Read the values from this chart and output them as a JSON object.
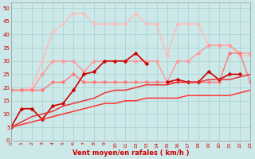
{
  "xlabel": "Vent moyen/en rafales ( km/h )",
  "xlim": [
    0,
    23
  ],
  "ylim": [
    0,
    52
  ],
  "yticks": [
    0,
    5,
    10,
    15,
    20,
    25,
    30,
    35,
    40,
    45,
    50
  ],
  "xticks": [
    0,
    1,
    2,
    3,
    4,
    5,
    6,
    7,
    8,
    9,
    10,
    11,
    12,
    13,
    14,
    15,
    16,
    17,
    18,
    19,
    20,
    21,
    22,
    23
  ],
  "bg_color": "#cce8e8",
  "grid_color": "#aad4d4",
  "series": [
    {
      "x": [
        0,
        1,
        2,
        3,
        4,
        5,
        6,
        7,
        8,
        9,
        10,
        11,
        12,
        13,
        14,
        15,
        16,
        17,
        18,
        19,
        20,
        21,
        22,
        23
      ],
      "y": [
        19,
        19,
        20,
        30,
        41,
        44,
        48,
        48,
        44,
        44,
        44,
        44,
        48,
        44,
        44,
        32,
        44,
        44,
        44,
        36,
        36,
        36,
        32,
        32
      ],
      "color": "#ffbbbb",
      "lw": 1.0,
      "marker": "D",
      "ms": 2.5
    },
    {
      "x": [
        0,
        1,
        2,
        3,
        4,
        5,
        6,
        7,
        8,
        9,
        10,
        11,
        12,
        13,
        14,
        15,
        16,
        17,
        18,
        19,
        20,
        21,
        22,
        23
      ],
      "y": [
        19,
        19,
        19,
        25,
        30,
        30,
        30,
        26,
        30,
        30,
        30,
        30,
        30,
        30,
        30,
        22,
        30,
        30,
        33,
        36,
        36,
        36,
        33,
        33
      ],
      "color": "#ff9999",
      "lw": 1.0,
      "marker": "D",
      "ms": 2.5
    },
    {
      "x": [
        0,
        1,
        2,
        3,
        4,
        5,
        6,
        7,
        8,
        9,
        10,
        11,
        12,
        13,
        14,
        15,
        16,
        17,
        18,
        19,
        20,
        21,
        22,
        23
      ],
      "y": [
        19,
        19,
        19,
        19,
        22,
        22,
        25,
        22,
        22,
        22,
        22,
        22,
        22,
        22,
        22,
        22,
        22,
        22,
        22,
        22,
        22,
        33,
        33,
        22
      ],
      "color": "#ff7777",
      "lw": 1.0,
      "marker": "D",
      "ms": 2.5
    },
    {
      "x": [
        0,
        1,
        2,
        3,
        4,
        5,
        6,
        7,
        8,
        9,
        10,
        11,
        12,
        13,
        14,
        15,
        16,
        17,
        18,
        19,
        20,
        21,
        22,
        23
      ],
      "y": [
        5,
        12,
        12,
        8,
        13,
        14,
        19,
        25,
        26,
        30,
        30,
        30,
        33,
        29,
        null,
        22,
        23,
        22,
        22,
        26,
        23,
        25,
        25,
        null
      ],
      "color": "#cc0000",
      "lw": 1.2,
      "marker": "D",
      "ms": 2.5
    },
    {
      "x": [
        0,
        1,
        2,
        3,
        4,
        5,
        6,
        7,
        8,
        9,
        10,
        11,
        12,
        13,
        14,
        15,
        16,
        17,
        18,
        19,
        20,
        21,
        22,
        23
      ],
      "y": [
        5,
        7,
        9,
        10,
        11,
        13,
        14,
        15,
        16,
        18,
        19,
        19,
        20,
        21,
        21,
        21,
        22,
        22,
        22,
        23,
        23,
        23,
        24,
        25
      ],
      "color": "#ee3333",
      "lw": 1.1,
      "marker": null,
      "ms": 0
    },
    {
      "x": [
        0,
        1,
        2,
        3,
        4,
        5,
        6,
        7,
        8,
        9,
        10,
        11,
        12,
        13,
        14,
        15,
        16,
        17,
        18,
        19,
        20,
        21,
        22,
        23
      ],
      "y": [
        5,
        6,
        7,
        8,
        9,
        10,
        11,
        12,
        13,
        14,
        14,
        15,
        15,
        16,
        16,
        16,
        16,
        17,
        17,
        17,
        17,
        17,
        18,
        19
      ],
      "color": "#ff3333",
      "lw": 1.1,
      "marker": null,
      "ms": 0
    }
  ]
}
